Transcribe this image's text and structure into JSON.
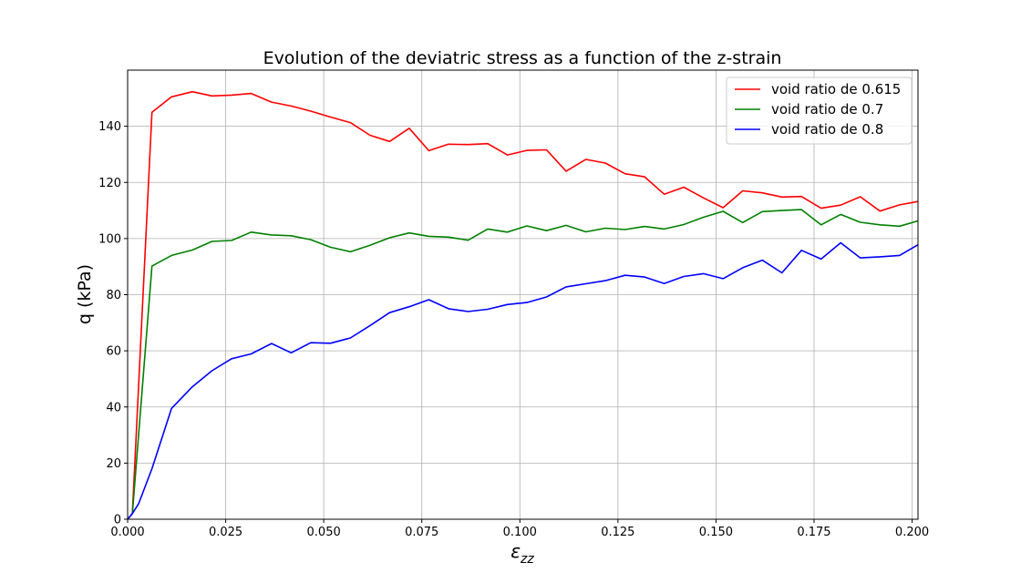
{
  "chart_data": {
    "type": "line",
    "title": "Evolution of the deviatric stress as a function of the z-strain",
    "xlabel": "ε",
    "xlabel_sub": "zz",
    "ylabel": "q (kPa)",
    "xlim": [
      0.0,
      0.2015
    ],
    "ylim": [
      0,
      160
    ],
    "grid": true,
    "legend_position": "top-right",
    "x_ticks": [
      {
        "value": 0.0,
        "label": "0.000"
      },
      {
        "value": 0.025,
        "label": "0.025"
      },
      {
        "value": 0.05,
        "label": "0.050"
      },
      {
        "value": 0.075,
        "label": "0.075"
      },
      {
        "value": 0.1,
        "label": "0.100"
      },
      {
        "value": 0.125,
        "label": "0.125"
      },
      {
        "value": 0.15,
        "label": "0.150"
      },
      {
        "value": 0.175,
        "label": "0.175"
      },
      {
        "value": 0.2,
        "label": "0.200"
      }
    ],
    "y_ticks": [
      {
        "value": 0,
        "label": "0"
      },
      {
        "value": 20,
        "label": "20"
      },
      {
        "value": 40,
        "label": "40"
      },
      {
        "value": 60,
        "label": "60"
      },
      {
        "value": 80,
        "label": "80"
      },
      {
        "value": 100,
        "label": "100"
      },
      {
        "value": 120,
        "label": "120"
      },
      {
        "value": 140,
        "label": "140"
      }
    ],
    "series": [
      {
        "name": "void ratio de 0.615",
        "color": "#ff0000",
        "points": [
          [
            0.0,
            0
          ],
          [
            0.0012,
            2
          ],
          [
            0.0062,
            145
          ],
          [
            0.0112,
            150.5
          ],
          [
            0.0165,
            152.3
          ],
          [
            0.0215,
            150.8
          ],
          [
            0.0265,
            151.1
          ],
          [
            0.0315,
            151.7
          ],
          [
            0.0367,
            148.6
          ],
          [
            0.0417,
            147.2
          ],
          [
            0.0467,
            145.4
          ],
          [
            0.0517,
            143.3
          ],
          [
            0.0568,
            141.3
          ],
          [
            0.0618,
            136.8
          ],
          [
            0.0668,
            134.6
          ],
          [
            0.0718,
            139.3
          ],
          [
            0.0768,
            131.3
          ],
          [
            0.0818,
            133.6
          ],
          [
            0.0868,
            133.5
          ],
          [
            0.0918,
            133.8
          ],
          [
            0.0968,
            129.8
          ],
          [
            0.1018,
            131.4
          ],
          [
            0.1068,
            131.6
          ],
          [
            0.1118,
            124.0
          ],
          [
            0.1168,
            128.2
          ],
          [
            0.1218,
            126.9
          ],
          [
            0.1268,
            123.1
          ],
          [
            0.1318,
            122.0
          ],
          [
            0.1368,
            115.8
          ],
          [
            0.1418,
            118.3
          ],
          [
            0.1468,
            114.5
          ],
          [
            0.1518,
            111.0
          ],
          [
            0.1568,
            117.0
          ],
          [
            0.1618,
            116.3
          ],
          [
            0.1668,
            114.8
          ],
          [
            0.1718,
            115.0
          ],
          [
            0.1768,
            110.8
          ],
          [
            0.1818,
            111.9
          ],
          [
            0.1868,
            114.9
          ],
          [
            0.1918,
            109.8
          ],
          [
            0.1968,
            112.0
          ],
          [
            0.2015,
            113.2
          ]
        ]
      },
      {
        "name": "void ratio de 0.7",
        "color": "#008000",
        "points": [
          [
            0.0,
            0
          ],
          [
            0.0012,
            2
          ],
          [
            0.0062,
            90.2
          ],
          [
            0.0112,
            94.0
          ],
          [
            0.0165,
            95.9
          ],
          [
            0.0215,
            99.0
          ],
          [
            0.0265,
            99.3
          ],
          [
            0.0315,
            102.3
          ],
          [
            0.0367,
            101.3
          ],
          [
            0.0417,
            101.0
          ],
          [
            0.0467,
            99.6
          ],
          [
            0.0517,
            96.9
          ],
          [
            0.0568,
            95.3
          ],
          [
            0.0618,
            97.6
          ],
          [
            0.0668,
            100.3
          ],
          [
            0.0718,
            102.0
          ],
          [
            0.0768,
            100.8
          ],
          [
            0.0818,
            100.5
          ],
          [
            0.0868,
            99.4
          ],
          [
            0.0918,
            103.4
          ],
          [
            0.0968,
            102.3
          ],
          [
            0.1018,
            104.5
          ],
          [
            0.1068,
            102.8
          ],
          [
            0.1118,
            104.7
          ],
          [
            0.1168,
            102.4
          ],
          [
            0.1218,
            103.7
          ],
          [
            0.1268,
            103.2
          ],
          [
            0.1318,
            104.3
          ],
          [
            0.1368,
            103.4
          ],
          [
            0.1418,
            105.0
          ],
          [
            0.1468,
            107.6
          ],
          [
            0.1518,
            109.7
          ],
          [
            0.1568,
            105.7
          ],
          [
            0.1618,
            109.6
          ],
          [
            0.1668,
            110.0
          ],
          [
            0.1718,
            110.3
          ],
          [
            0.1768,
            104.9
          ],
          [
            0.1818,
            108.6
          ],
          [
            0.1868,
            105.8
          ],
          [
            0.1918,
            104.9
          ],
          [
            0.1968,
            104.4
          ],
          [
            0.2015,
            106.3
          ]
        ]
      },
      {
        "name": "void ratio de 0.8",
        "color": "#0000ff",
        "points": [
          [
            0.0,
            0
          ],
          [
            0.0012,
            2
          ],
          [
            0.0028,
            5.5
          ],
          [
            0.0062,
            18.0
          ],
          [
            0.0112,
            39.5
          ],
          [
            0.0165,
            47.2
          ],
          [
            0.0215,
            52.9
          ],
          [
            0.0265,
            57.2
          ],
          [
            0.0315,
            58.9
          ],
          [
            0.0367,
            62.6
          ],
          [
            0.0417,
            59.3
          ],
          [
            0.0467,
            62.9
          ],
          [
            0.0517,
            62.7
          ],
          [
            0.0568,
            64.6
          ],
          [
            0.0618,
            69.0
          ],
          [
            0.0668,
            73.6
          ],
          [
            0.0718,
            75.7
          ],
          [
            0.0768,
            78.2
          ],
          [
            0.0818,
            75.0
          ],
          [
            0.0868,
            74.0
          ],
          [
            0.0918,
            74.8
          ],
          [
            0.0968,
            76.5
          ],
          [
            0.1018,
            77.2
          ],
          [
            0.1068,
            79.2
          ],
          [
            0.1118,
            82.8
          ],
          [
            0.1168,
            83.9
          ],
          [
            0.1218,
            85.0
          ],
          [
            0.1268,
            86.9
          ],
          [
            0.1318,
            86.3
          ],
          [
            0.1368,
            84.0
          ],
          [
            0.1418,
            86.5
          ],
          [
            0.1468,
            87.5
          ],
          [
            0.1518,
            85.7
          ],
          [
            0.1568,
            89.6
          ],
          [
            0.1618,
            92.3
          ],
          [
            0.1668,
            87.8
          ],
          [
            0.1718,
            95.8
          ],
          [
            0.1768,
            92.7
          ],
          [
            0.1818,
            98.5
          ],
          [
            0.1868,
            93.1
          ],
          [
            0.1918,
            93.5
          ],
          [
            0.1968,
            94.0
          ],
          [
            0.2015,
            97.8
          ]
        ]
      }
    ]
  }
}
